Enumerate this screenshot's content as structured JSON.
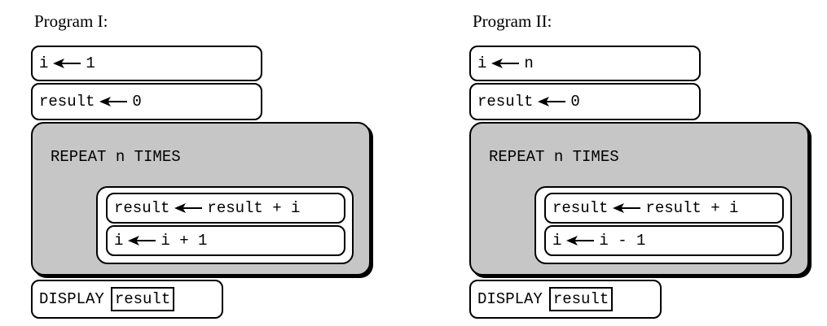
{
  "programs": [
    {
      "title": "Program I:",
      "init_i": {
        "var": "i",
        "value": "1"
      },
      "init_result": {
        "var": "result",
        "value": "0"
      },
      "repeat_header": "REPEAT n TIMES",
      "loop_line1": {
        "var": "result",
        "expr": "result + i"
      },
      "loop_line2": {
        "var": "i",
        "expr": "i + 1"
      },
      "display_keyword": "DISPLAY",
      "display_arg": "result"
    },
    {
      "title": "Program II:",
      "init_i": {
        "var": "i",
        "value": "n"
      },
      "init_result": {
        "var": "result",
        "value": "0"
      },
      "repeat_header": "REPEAT n TIMES",
      "loop_line1": {
        "var": "result",
        "expr": "result + i"
      },
      "loop_line2": {
        "var": "i",
        "expr": "i - 1"
      },
      "display_keyword": "DISPLAY",
      "display_arg": "result"
    }
  ],
  "arrow_icon": "left-arrow-icon"
}
